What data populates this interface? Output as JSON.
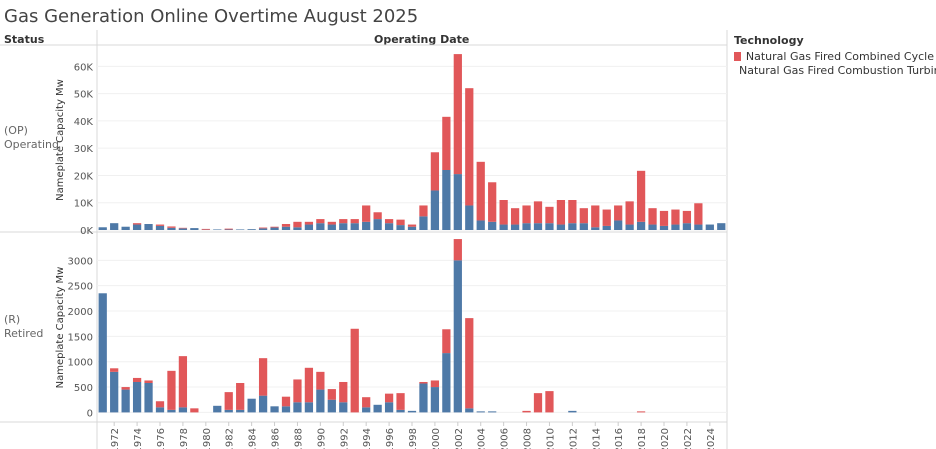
{
  "title": "Gas Generation Online Overtime August 2025",
  "headers": {
    "status": "Status",
    "operating_date": "Operating Date"
  },
  "legend": {
    "title": "Technology",
    "items": [
      {
        "label": "Natural Gas Fired Combined Cycle",
        "color": "#e15759"
      },
      {
        "label": "Natural Gas Fired Combustion Turbine",
        "color": "#4e79a7"
      }
    ]
  },
  "colors": {
    "combined_cycle": "#e15759",
    "combustion_turbine": "#4e79a7"
  },
  "chart_data": {
    "type": "bar",
    "stacked": true,
    "x": [
      1971,
      1972,
      1973,
      1974,
      1975,
      1976,
      1977,
      1978,
      1979,
      1980,
      1981,
      1982,
      1983,
      1984,
      1985,
      1986,
      1987,
      1988,
      1989,
      1990,
      1991,
      1992,
      1993,
      1994,
      1995,
      1996,
      1997,
      1998,
      1999,
      2000,
      2001,
      2002,
      2003,
      2004,
      2005,
      2006,
      2007,
      2008,
      2009,
      2010,
      2011,
      2012,
      2013,
      2014,
      2015,
      2016,
      2017,
      2018,
      2019,
      2020,
      2021,
      2022,
      2023,
      2024,
      2025
    ],
    "xticks": [
      "1972",
      "1974",
      "1976",
      "1978",
      "1980",
      "1982",
      "1984",
      "1986",
      "1988",
      "1990",
      "1992",
      "1994",
      "1996",
      "1998",
      "2000",
      "2002",
      "2004",
      "2006",
      "2008",
      "2010",
      "2012",
      "2014",
      "2016",
      "2018",
      "2020",
      "2022",
      "2024"
    ],
    "panels": [
      {
        "row_label": "(OP) Operating",
        "ylabel": "Nameplate Capacity Mw",
        "ylim": [
          0,
          66000
        ],
        "yticks": [
          0,
          10000,
          20000,
          30000,
          40000,
          50000,
          60000
        ],
        "ytick_labels": [
          "0K",
          "10K",
          "20K",
          "30K",
          "40K",
          "50K",
          "60K"
        ],
        "series": [
          {
            "name": "Natural Gas Fired Combustion Turbine",
            "values": [
              1000,
              2500,
              1200,
              2000,
              2200,
              1500,
              800,
              600,
              700,
              100,
              200,
              200,
              200,
              300,
              600,
              900,
              1200,
              1000,
              2000,
              2500,
              2000,
              2500,
              2500,
              3000,
              4000,
              2500,
              1800,
              1200,
              5000,
              14500,
              22000,
              20500,
              9000,
              3500,
              3000,
              2000,
              2000,
              2500,
              2500,
              2500,
              2000,
              2500,
              2500,
              1000,
              1500,
              3500,
              2000,
              3000,
              2000,
              1500,
              2000,
              2500,
              2000,
              2000,
              2500
            ]
          },
          {
            "name": "Natural Gas Fired Combined Cycle",
            "values": [
              0,
              0,
              0,
              500,
              0,
              500,
              500,
              200,
              0,
              300,
              0,
              300,
              0,
              0,
              300,
              300,
              1000,
              2000,
              1000,
              1500,
              1000,
              1500,
              1500,
              6000,
              2500,
              1500,
              2000,
              800,
              4000,
              14000,
              19500,
              44000,
              43000,
              21500,
              14500,
              9000,
              6000,
              6500,
              8000,
              6000,
              9000,
              8500,
              5500,
              8000,
              6000,
              5500,
              8500,
              18700,
              6000,
              5500,
              5500,
              4500,
              7800,
              0,
              0
            ]
          }
        ]
      },
      {
        "row_label": "(R) Retired",
        "ylabel": "Nameplate Capacity Mw",
        "ylim": [
          -150,
          3500
        ],
        "yticks": [
          0,
          500,
          1000,
          1500,
          2000,
          2500,
          3000
        ],
        "ytick_labels": [
          "0",
          "500",
          "1000",
          "1500",
          "2000",
          "2500",
          "3000"
        ],
        "series": [
          {
            "name": "Natural Gas Fired Combustion Turbine",
            "values": [
              2350,
              800,
              450,
              600,
              580,
              100,
              50,
              100,
              0,
              0,
              130,
              50,
              50,
              270,
              330,
              120,
              120,
              200,
              200,
              450,
              250,
              200,
              0,
              100,
              150,
              200,
              50,
              30,
              570,
              500,
              1170,
              3000,
              80,
              20,
              20,
              0,
              0,
              0,
              0,
              0,
              0,
              30,
              0,
              0,
              0,
              0,
              0,
              0,
              0,
              0,
              0,
              0,
              0,
              0,
              0
            ]
          },
          {
            "name": "Natural Gas Fired Combined Cycle",
            "values": [
              0,
              70,
              50,
              80,
              50,
              120,
              770,
              1010,
              80,
              0,
              0,
              350,
              530,
              0,
              740,
              0,
              190,
              450,
              680,
              350,
              210,
              400,
              1650,
              200,
              0,
              170,
              330,
              0,
              30,
              130,
              470,
              420,
              1780,
              0,
              0,
              0,
              0,
              30,
              380,
              420,
              0,
              0,
              0,
              0,
              0,
              0,
              0,
              20,
              0,
              0,
              0,
              0,
              0,
              0,
              0
            ]
          }
        ]
      }
    ]
  }
}
